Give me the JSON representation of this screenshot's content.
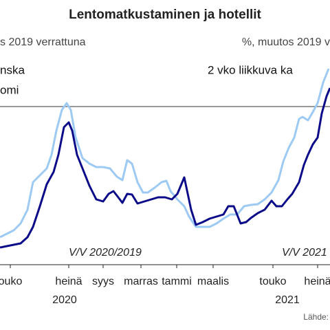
{
  "chart_data": {
    "type": "line",
    "title": "Lentomatkustaminen ja hotellit",
    "subtitle_left": "s 2019 verrattuna",
    "subtitle_right": "%, muutos 2019 v",
    "legend_texts": [
      "nska",
      "omi"
    ],
    "note": "2 vko liikkuva ka",
    "annotations": [
      {
        "text": "V/V 2020/2019",
        "x": 100
      },
      {
        "text": "V/V 2021",
        "x": 410
      }
    ],
    "years": [
      {
        "text": "2020",
        "x": 94
      },
      {
        "text": "2021",
        "x": 418
      }
    ],
    "source": "Lähde:",
    "xlim": [
      0,
      480
    ],
    "ylim": [
      0,
      290
    ],
    "reference_line": 230,
    "xticks": [
      {
        "value": 15,
        "label": "ouko"
      },
      {
        "value": 100,
        "label": "heinä"
      },
      {
        "value": 150,
        "label": "syys"
      },
      {
        "value": 205,
        "label": "marras"
      },
      {
        "value": 257,
        "label": "tammi"
      },
      {
        "value": 310,
        "label": "maalis"
      },
      {
        "value": 397,
        "label": "touko"
      },
      {
        "value": 462,
        "label": "heinä"
      }
    ],
    "series": [
      {
        "color": "#9dcaf3",
        "x": [
          0,
          10,
          20,
          30,
          40,
          48,
          58,
          68,
          75,
          82,
          90,
          97,
          103,
          110,
          120,
          130,
          140,
          150,
          160,
          170,
          178,
          185,
          192,
          200,
          208,
          215,
          225,
          235,
          242,
          248,
          258,
          268,
          275,
          285,
          295,
          305,
          315,
          325,
          335,
          345,
          355,
          365,
          375,
          385,
          395,
          405,
          412,
          420,
          428,
          435,
          440,
          448,
          455,
          462,
          470,
          478
        ],
        "values": [
          40,
          45,
          50,
          60,
          80,
          120,
          130,
          140,
          160,
          195,
          225,
          235,
          225,
          185,
          155,
          147,
          142,
          142,
          140,
          128,
          123,
          152,
          147,
          120,
          105,
          105,
          112,
          120,
          122,
          107,
          95,
          85,
          70,
          55,
          55,
          55,
          60,
          67,
          73,
          73,
          85,
          87,
          88,
          95,
          105,
          123,
          150,
          170,
          185,
          212,
          215,
          210,
          222,
          235,
          265,
          285
        ]
      },
      {
        "color": "#0b0b8a",
        "x": [
          0,
          10,
          20,
          30,
          40,
          48,
          58,
          68,
          78,
          85,
          93,
          100,
          105,
          112,
          120,
          130,
          140,
          150,
          158,
          165,
          172,
          178,
          185,
          192,
          200,
          210,
          220,
          230,
          240,
          250,
          258,
          268,
          278,
          285,
          295,
          305,
          315,
          325,
          332,
          340,
          350,
          358,
          365,
          375,
          385,
          395,
          402,
          410,
          418,
          425,
          435,
          442,
          448,
          455,
          462,
          468,
          475,
          480
        ],
        "values": [
          25,
          27,
          29,
          31,
          40,
          55,
          85,
          117,
          135,
          160,
          200,
          207,
          195,
          160,
          140,
          115,
          95,
          92,
          103,
          107,
          98,
          90,
          103,
          102,
          89,
          92,
          95,
          98,
          98,
          95,
          103,
          127,
          80,
          58,
          62,
          67,
          70,
          73,
          85,
          85,
          60,
          62,
          68,
          75,
          80,
          93,
          85,
          85,
          95,
          103,
          120,
          145,
          160,
          175,
          185,
          220,
          245,
          257
        ]
      }
    ]
  }
}
